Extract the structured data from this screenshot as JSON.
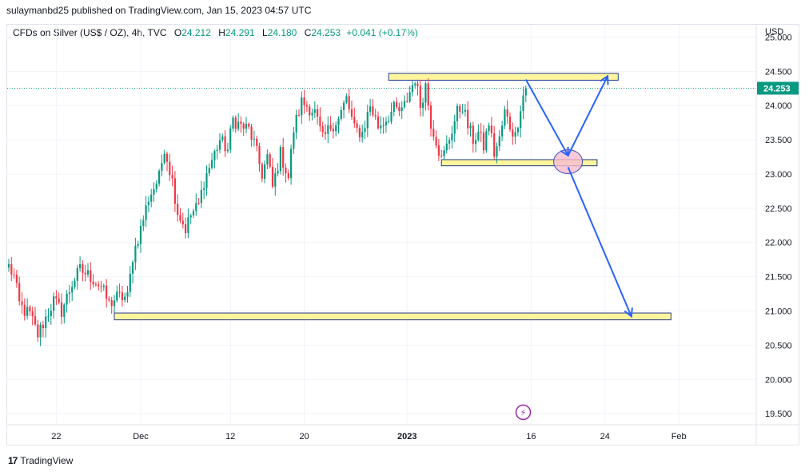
{
  "header": {
    "publish_text": "sulaymanbd25 published on TradingView.com, Jan 15, 2023 04:57 UTC"
  },
  "legend": {
    "symbol": "CFDs on Silver (US$ / OZ), 4h, TVC",
    "o_label": "O",
    "o_value": "24.212",
    "h_label": "H",
    "h_value": "24.291",
    "l_label": "L",
    "l_value": "24.180",
    "c_label": "C",
    "c_value": "24.253",
    "change": "+0.041 (+0.17%)"
  },
  "footer": {
    "logo": "17",
    "brand": "TradingView"
  },
  "colors": {
    "up": "#089981",
    "down": "#f23645",
    "zone_fill": "#fff59d",
    "zone_stroke": "#1e3a8a",
    "arrow": "#2962ff",
    "circle_fill": "#f8bbd0",
    "circle_stroke": "#3f51b5",
    "price_tag": "#089981",
    "event_icon": "#9c27b0"
  },
  "chart_data": {
    "type": "candlestick",
    "title": "CFDs on Silver (US$ / OZ), 4h, TVC",
    "currency_label": "USD",
    "ylim": [
      19.35,
      25.18
    ],
    "y_ticks": [
      "25.000",
      "24.500",
      "24.000",
      "23.500",
      "23.000",
      "22.500",
      "22.000",
      "21.500",
      "21.000",
      "20.500",
      "20.000",
      "19.500"
    ],
    "y_tick_values": [
      25.0,
      24.5,
      24.0,
      23.5,
      23.0,
      22.5,
      22.0,
      21.5,
      21.0,
      20.5,
      20.0,
      19.5
    ],
    "x_ticks": [
      {
        "label": "22",
        "bar": 18,
        "bold": false
      },
      {
        "label": "Dec",
        "bar": 50,
        "bold": false
      },
      {
        "label": "12",
        "bar": 84,
        "bold": false
      },
      {
        "label": "20",
        "bar": 112,
        "bold": false
      },
      {
        "label": "2023",
        "bar": 151,
        "bold": true
      },
      {
        "label": "16",
        "bar": 198,
        "bold": false
      },
      {
        "label": "24",
        "bar": 226,
        "bold": false
      },
      {
        "label": "Feb",
        "bar": 254,
        "bold": false
      }
    ],
    "last_price": 24.253,
    "last_price_label": "24.253",
    "anchors": [
      [
        0,
        21.65
      ],
      [
        2,
        21.5
      ],
      [
        4,
        21.1
      ],
      [
        6,
        21.0
      ],
      [
        8,
        20.95
      ],
      [
        11,
        20.65
      ],
      [
        14,
        20.9
      ],
      [
        17,
        21.15
      ],
      [
        20,
        21.0
      ],
      [
        24,
        21.4
      ],
      [
        27,
        21.6
      ],
      [
        31,
        21.5
      ],
      [
        35,
        21.35
      ],
      [
        38,
        21.1
      ],
      [
        41,
        21.2
      ],
      [
        45,
        21.2
      ],
      [
        47,
        21.8
      ],
      [
        50,
        22.2
      ],
      [
        53,
        22.65
      ],
      [
        57,
        22.95
      ],
      [
        59,
        23.4
      ],
      [
        62,
        22.9
      ],
      [
        64,
        22.45
      ],
      [
        67,
        22.2
      ],
      [
        69,
        22.4
      ],
      [
        72,
        22.55
      ],
      [
        74,
        22.9
      ],
      [
        77,
        23.2
      ],
      [
        80,
        23.5
      ],
      [
        83,
        23.35
      ],
      [
        85,
        23.8
      ],
      [
        88,
        23.7
      ],
      [
        91,
        23.65
      ],
      [
        93,
        23.45
      ],
      [
        96,
        23.0
      ],
      [
        98,
        23.25
      ],
      [
        100,
        22.8
      ],
      [
        103,
        23.3
      ],
      [
        106,
        22.95
      ],
      [
        108,
        23.65
      ],
      [
        111,
        24.05
      ],
      [
        113,
        24.0
      ],
      [
        116,
        23.9
      ],
      [
        119,
        23.5
      ],
      [
        122,
        23.7
      ],
      [
        125,
        23.8
      ],
      [
        128,
        24.1
      ],
      [
        131,
        23.65
      ],
      [
        134,
        23.6
      ],
      [
        137,
        24.0
      ],
      [
        140,
        23.7
      ],
      [
        143,
        23.8
      ],
      [
        146,
        23.95
      ],
      [
        149,
        23.9
      ],
      [
        152,
        24.2
      ],
      [
        154,
        24.4
      ],
      [
        156,
        24.0
      ],
      [
        158,
        24.3
      ],
      [
        160,
        23.75
      ],
      [
        162,
        23.5
      ],
      [
        164,
        23.2
      ],
      [
        166,
        23.4
      ],
      [
        168,
        23.65
      ],
      [
        170,
        23.9
      ],
      [
        172,
        24.0
      ],
      [
        174,
        23.7
      ],
      [
        176,
        23.5
      ],
      [
        178,
        23.6
      ],
      [
        180,
        23.4
      ],
      [
        182,
        23.75
      ],
      [
        184,
        23.3
      ],
      [
        186,
        23.5
      ],
      [
        188,
        23.9
      ],
      [
        190,
        23.7
      ],
      [
        192,
        23.55
      ],
      [
        194,
        24.0
      ],
      [
        195,
        24.15
      ],
      [
        196,
        24.253
      ]
    ],
    "zones": [
      {
        "name": "resistance-zone",
        "bar_start": 144,
        "bar_end": 231,
        "price_top": 24.47,
        "price_bottom": 24.37
      },
      {
        "name": "support-zone",
        "bar_start": 164,
        "bar_end": 223,
        "price_top": 23.21,
        "price_bottom": 23.12
      },
      {
        "name": "target-zone",
        "bar_start": 40,
        "bar_end": 251,
        "price_top": 20.97,
        "price_bottom": 20.87
      }
    ],
    "arrows": [
      {
        "name": "drop-to-support-arrow",
        "from": [
          196,
          24.38
        ],
        "to": [
          212,
          23.27
        ]
      },
      {
        "name": "rebound-to-resistance-arrow",
        "from": [
          212,
          23.27
        ],
        "to": [
          227,
          24.43
        ]
      },
      {
        "name": "breakdown-to-target-arrow",
        "from": [
          212,
          23.1
        ],
        "to": [
          236,
          20.92
        ]
      }
    ],
    "highlight_circle": {
      "bar": 212,
      "price": 23.18
    },
    "event_icon": {
      "bar": 195,
      "price": 19.52,
      "glyph": "⚡"
    }
  }
}
